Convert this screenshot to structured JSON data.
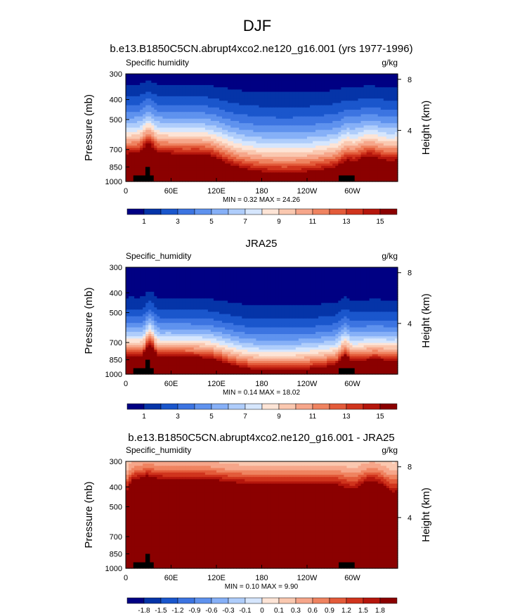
{
  "page": {
    "title": "DJF"
  },
  "lon_ticks": [
    "0",
    "60E",
    "120E",
    "180",
    "120W",
    "60W"
  ],
  "lon_tick_values": [
    0,
    60,
    120,
    180,
    240,
    300
  ],
  "pressure_ticks": [
    "300",
    "400",
    "500",
    "700",
    "850",
    "1000"
  ],
  "pressure_tick_values": [
    300,
    400,
    500,
    700,
    850,
    1000
  ],
  "height_ticks": [
    "8",
    "4"
  ],
  "height_tick_values": [
    8,
    4
  ],
  "axis_labels": {
    "left": "Pressure (mb)",
    "right": "Height (km)"
  },
  "chart_data": [
    {
      "type": "heatmap",
      "title": "b.e13.B1850C5CN.abrupt4xco2.ne120_g16.001 (yrs 1977-1996)",
      "variable": "Specific humidity",
      "units": "g/kg",
      "ylabel": "Pressure (mb)",
      "ylabel_right": "Height (km)",
      "xlim": [
        0,
        360
      ],
      "ylim": [
        1000,
        300
      ],
      "min_max_label": "MIN =   0.32  MAX =  24.26",
      "min": 0.32,
      "max": 24.26,
      "field": "model",
      "colorbar": {
        "levels": [
          0,
          1,
          2,
          3,
          4,
          5,
          6,
          7,
          8,
          9,
          10,
          11,
          12,
          13,
          14,
          15,
          16
        ],
        "labels": [
          "1",
          "3",
          "5",
          "7",
          "9",
          "11",
          "13",
          "15"
        ],
        "label_positions": [
          1,
          3,
          5,
          7,
          9,
          11,
          13,
          15
        ],
        "colors": [
          "#000083",
          "#0534a8",
          "#1a56cc",
          "#3c74e1",
          "#5f92ee",
          "#86b0f7",
          "#afcdfb",
          "#d6e6fd",
          "#fde4d6",
          "#fac8b0",
          "#f6a68a",
          "#ef8360",
          "#e35b3a",
          "#d0341d",
          "#b5160c",
          "#8b0000"
        ]
      }
    },
    {
      "type": "heatmap",
      "title": "JRA25",
      "variable": "Specific_humidity",
      "units": "g/kg",
      "ylabel": "Pressure (mb)",
      "ylabel_right": "Height (km)",
      "xlim": [
        0,
        360
      ],
      "ylim": [
        1000,
        300
      ],
      "min_max_label": "MIN =   0.14  MAX =  18.02",
      "min": 0.14,
      "max": 18.02,
      "field": "obs",
      "colorbar": {
        "levels": [
          0,
          1,
          2,
          3,
          4,
          5,
          6,
          7,
          8,
          9,
          10,
          11,
          12,
          13,
          14,
          15,
          16
        ],
        "labels": [
          "1",
          "3",
          "5",
          "7",
          "9",
          "11",
          "13",
          "15"
        ],
        "label_positions": [
          1,
          3,
          5,
          7,
          9,
          11,
          13,
          15
        ],
        "colors": [
          "#000083",
          "#0534a8",
          "#1a56cc",
          "#3c74e1",
          "#5f92ee",
          "#86b0f7",
          "#afcdfb",
          "#d6e6fd",
          "#fde4d6",
          "#fac8b0",
          "#f6a68a",
          "#ef8360",
          "#e35b3a",
          "#d0341d",
          "#b5160c",
          "#8b0000"
        ]
      }
    },
    {
      "type": "heatmap",
      "title": "b.e13.B1850C5CN.abrupt4xco2.ne120_g16.001 - JRA25",
      "variable": "Specific_humidity",
      "units": "g/kg",
      "ylabel": "Pressure (mb)",
      "ylabel_right": "Height (km)",
      "xlim": [
        0,
        360
      ],
      "ylim": [
        1000,
        300
      ],
      "min_max_label": "MIN =   0.10  MAX =   9.90",
      "min": 0.1,
      "max": 9.9,
      "field": "diff",
      "colorbar": {
        "levels": [
          -2.1,
          -1.8,
          -1.5,
          -1.2,
          -0.9,
          -0.6,
          -0.3,
          -0.1,
          0,
          0.1,
          0.3,
          0.6,
          0.9,
          1.2,
          1.5,
          1.8,
          2.1
        ],
        "labels": [
          "-1.8",
          "-1.5",
          "-1.2",
          "-0.9",
          "-0.6",
          "-0.3",
          "-0.1",
          "0",
          "0.1",
          "0.3",
          "0.6",
          "0.9",
          "1.2",
          "1.5",
          "1.8"
        ],
        "label_positions": [
          -1.8,
          -1.5,
          -1.2,
          -0.9,
          -0.6,
          -0.3,
          -0.1,
          0,
          0.1,
          0.3,
          0.6,
          0.9,
          1.2,
          1.5,
          1.8
        ],
        "colors": [
          "#000083",
          "#0534a8",
          "#1a56cc",
          "#3c74e1",
          "#5f92ee",
          "#86b0f7",
          "#afcdfb",
          "#d6e6fd",
          "#fde4d6",
          "#fac8b0",
          "#f6a68a",
          "#ef8360",
          "#e35b3a",
          "#d0341d",
          "#b5160c",
          "#8b0000"
        ]
      }
    }
  ]
}
